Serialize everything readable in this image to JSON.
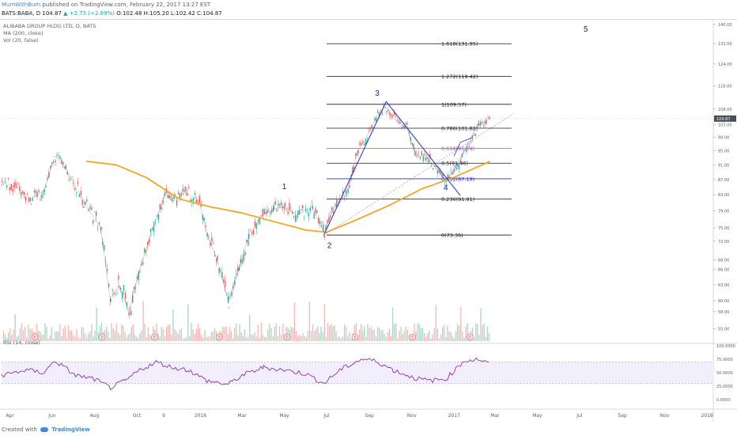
{
  "header": {
    "user": "MumWithBum",
    "published": "published on TradingView.com, February 22, 2017 13:27 EST",
    "symbol": "BATS:BABA, D",
    "last": "104.87",
    "change": "▲ +2.75 (+2.69%)",
    "ohlc": "O:102.48 H:105.20 L:102.42 C:104.87"
  },
  "legend": {
    "title": "ALIBABA GROUP HLDG LTD, D, BATS",
    "ma": "MA (200, close)",
    "vol": "Vol (20, false)",
    "rsi": "RSI (14, close)"
  },
  "footer": {
    "created": "Created with",
    "brand": "TradingView"
  },
  "chart_data": {
    "type": "line",
    "price_axis": {
      "ticks": [
        140,
        132,
        124,
        116,
        108,
        103,
        99,
        95,
        91,
        87,
        83,
        79,
        75,
        72,
        68,
        66,
        63,
        60,
        58,
        55
      ],
      "labels": [
        "140.00",
        "132.00",
        "124.00",
        "116.00",
        "108.00",
        "103.00",
        "99.00",
        "95.00",
        "91.00",
        "87.00",
        "83.00",
        "79.00",
        "75.00",
        "72.00",
        "68.00",
        "66.00",
        "63.00",
        "60.00",
        "58.00",
        "55.00"
      ],
      "last_price_label": "104.87",
      "scale": "log"
    },
    "rsi_axis": {
      "ticks": [
        100,
        75,
        50,
        25,
        0
      ],
      "labels": [
        "100.0000",
        "75.0000",
        "50.0000",
        "25.0000",
        "0.0000"
      ]
    },
    "x_axis_labels": [
      "Apr",
      "Jun",
      "Aug",
      "Oct",
      "9",
      "2016",
      "Mar",
      "May",
      "Jul",
      "Sep",
      "Nov",
      "2017",
      "Mar",
      "May",
      "Jul",
      "Sep",
      "Nov",
      "2018"
    ],
    "fib_levels": [
      {
        "label": "0(73.36)",
        "value": 73.36,
        "color": "#131722"
      },
      {
        "label": "0.236(81.91)",
        "value": 81.91,
        "color": "#131722"
      },
      {
        "label": "0.382(87.19)",
        "value": 87.19,
        "color": "#2a2ad4"
      },
      {
        "label": "0.5(91.46)",
        "value": 91.46,
        "color": "#131722"
      },
      {
        "label": "0.618(95.74)",
        "value": 95.74,
        "color": "#c040e0"
      },
      {
        "label": "0.786(101.82)",
        "value": 101.82,
        "color": "#131722"
      },
      {
        "label": "1(109.57)",
        "value": 109.57,
        "color": "#131722"
      },
      {
        "label": "1.272(119.42)",
        "value": 119.42,
        "color": "#131722"
      },
      {
        "label": "1.618(131.95)",
        "value": 131.95,
        "color": "#131722"
      }
    ],
    "wave_labels": [
      {
        "text": "1",
        "date": "2016-05-01",
        "price": 84.5
      },
      {
        "text": "2",
        "date": "2016-07-05",
        "price": 70.5
      },
      {
        "text": "3",
        "date": "2016-09-12",
        "price": 112.5
      },
      {
        "text": "4",
        "date": "2016-12-20",
        "price": 84.2
      },
      {
        "text": "5",
        "date": "2017-07-10",
        "price": 137
      }
    ],
    "price_series": [
      {
        "x": "2015-03-20",
        "y": 86.5
      },
      {
        "x": "2015-04-10",
        "y": 85.0
      },
      {
        "x": "2015-05-01",
        "y": 82.0
      },
      {
        "x": "2015-05-20",
        "y": 84.0
      },
      {
        "x": "2015-06-05",
        "y": 93.5
      },
      {
        "x": "2015-06-20",
        "y": 90.0
      },
      {
        "x": "2015-07-05",
        "y": 85.0
      },
      {
        "x": "2015-07-25",
        "y": 79.0
      },
      {
        "x": "2015-08-10",
        "y": 75.0
      },
      {
        "x": "2015-08-24",
        "y": 60.0
      },
      {
        "x": "2015-09-05",
        "y": 63.0
      },
      {
        "x": "2015-09-20",
        "y": 58.0
      },
      {
        "x": "2015-10-05",
        "y": 66.0
      },
      {
        "x": "2015-10-25",
        "y": 75.0
      },
      {
        "x": "2015-11-10",
        "y": 83.0
      },
      {
        "x": "2015-11-25",
        "y": 82.0
      },
      {
        "x": "2015-12-10",
        "y": 83.5
      },
      {
        "x": "2015-12-30",
        "y": 81.5
      },
      {
        "x": "2016-01-10",
        "y": 74.0
      },
      {
        "x": "2016-01-25",
        "y": 68.0
      },
      {
        "x": "2016-02-10",
        "y": 60.0
      },
      {
        "x": "2016-02-25",
        "y": 66.0
      },
      {
        "x": "2016-03-10",
        "y": 73.0
      },
      {
        "x": "2016-03-30",
        "y": 78.0
      },
      {
        "x": "2016-04-15",
        "y": 79.5
      },
      {
        "x": "2016-05-01",
        "y": 80.0
      },
      {
        "x": "2016-05-20",
        "y": 78.0
      },
      {
        "x": "2016-06-10",
        "y": 80.0
      },
      {
        "x": "2016-06-27",
        "y": 74.0
      },
      {
        "x": "2016-07-15",
        "y": 81.0
      },
      {
        "x": "2016-07-29",
        "y": 83.0
      },
      {
        "x": "2016-08-15",
        "y": 95.0
      },
      {
        "x": "2016-08-30",
        "y": 100.0
      },
      {
        "x": "2016-09-12",
        "y": 106.0
      },
      {
        "x": "2016-09-25",
        "y": 108.5
      },
      {
        "x": "2016-10-10",
        "y": 104.0
      },
      {
        "x": "2016-10-25",
        "y": 102.0
      },
      {
        "x": "2016-11-08",
        "y": 93.0
      },
      {
        "x": "2016-11-20",
        "y": 94.0
      },
      {
        "x": "2016-12-05",
        "y": 90.0
      },
      {
        "x": "2016-12-20",
        "y": 87.0
      },
      {
        "x": "2017-01-05",
        "y": 90.0
      },
      {
        "x": "2017-01-20",
        "y": 97.0
      },
      {
        "x": "2017-02-05",
        "y": 103.0
      },
      {
        "x": "2017-02-22",
        "y": 104.87
      }
    ],
    "ma_series": [
      {
        "x": "2015-07-20",
        "y": 92.0
      },
      {
        "x": "2015-09-01",
        "y": 91.0
      },
      {
        "x": "2015-10-15",
        "y": 87.5
      },
      {
        "x": "2015-12-01",
        "y": 82.0
      },
      {
        "x": "2016-01-15",
        "y": 80.0
      },
      {
        "x": "2016-03-01",
        "y": 78.5
      },
      {
        "x": "2016-04-15",
        "y": 76.5
      },
      {
        "x": "2016-06-01",
        "y": 74.5
      },
      {
        "x": "2016-07-01",
        "y": 74.0
      },
      {
        "x": "2016-08-15",
        "y": 77.0
      },
      {
        "x": "2016-10-01",
        "y": 80.5
      },
      {
        "x": "2016-11-15",
        "y": 84.5
      },
      {
        "x": "2016-12-31",
        "y": 87.5
      },
      {
        "x": "2017-02-22",
        "y": 92.0
      }
    ],
    "rsi_series": [
      {
        "x": "2015-03-20",
        "y": 45
      },
      {
        "x": "2015-04-25",
        "y": 55
      },
      {
        "x": "2015-05-20",
        "y": 50
      },
      {
        "x": "2015-06-05",
        "y": 72
      },
      {
        "x": "2015-07-05",
        "y": 45
      },
      {
        "x": "2015-08-01",
        "y": 38
      },
      {
        "x": "2015-08-24",
        "y": 22
      },
      {
        "x": "2015-09-15",
        "y": 35
      },
      {
        "x": "2015-10-05",
        "y": 55
      },
      {
        "x": "2015-10-30",
        "y": 70
      },
      {
        "x": "2015-11-20",
        "y": 60
      },
      {
        "x": "2015-12-15",
        "y": 55
      },
      {
        "x": "2016-01-10",
        "y": 35
      },
      {
        "x": "2016-02-10",
        "y": 28
      },
      {
        "x": "2016-03-01",
        "y": 45
      },
      {
        "x": "2016-04-01",
        "y": 60
      },
      {
        "x": "2016-05-01",
        "y": 55
      },
      {
        "x": "2016-06-01",
        "y": 48
      },
      {
        "x": "2016-06-27",
        "y": 30
      },
      {
        "x": "2016-07-20",
        "y": 55
      },
      {
        "x": "2016-08-20",
        "y": 75
      },
      {
        "x": "2016-09-10",
        "y": 72
      },
      {
        "x": "2016-10-05",
        "y": 55
      },
      {
        "x": "2016-11-05",
        "y": 40
      },
      {
        "x": "2016-11-25",
        "y": 35
      },
      {
        "x": "2016-12-20",
        "y": 38
      },
      {
        "x": "2017-01-15",
        "y": 72
      },
      {
        "x": "2017-02-05",
        "y": 75
      },
      {
        "x": "2017-02-22",
        "y": 65
      }
    ],
    "events_label": "E"
  }
}
